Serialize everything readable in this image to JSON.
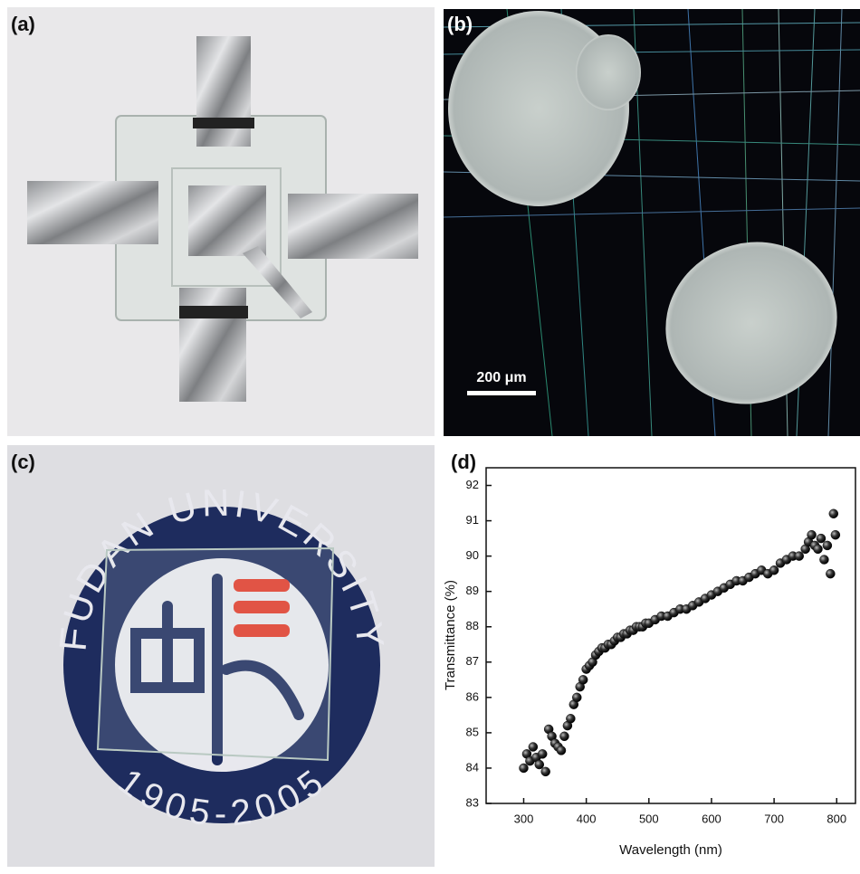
{
  "panels": {
    "a": {
      "label": "(a)"
    },
    "b": {
      "label": "(b)",
      "scale_bar": "200 μm"
    },
    "c": {
      "label": "(c)",
      "logo_top": "FUDAN UNIVERSITY",
      "logo_bottom": "1905-2005"
    }
  },
  "chart_data": {
    "type": "scatter",
    "label": "(d)",
    "x_label": "Wavelength (nm)",
    "y_label": "Transmittance (%)",
    "x": [
      300,
      305,
      310,
      315,
      320,
      325,
      330,
      335,
      340,
      345,
      350,
      355,
      360,
      365,
      370,
      375,
      380,
      385,
      390,
      395,
      400,
      405,
      410,
      415,
      420,
      425,
      430,
      435,
      440,
      445,
      450,
      455,
      460,
      465,
      470,
      475,
      480,
      485,
      490,
      495,
      500,
      510,
      520,
      530,
      540,
      550,
      560,
      570,
      580,
      590,
      600,
      610,
      620,
      630,
      640,
      650,
      660,
      670,
      680,
      690,
      700,
      710,
      720,
      730,
      740,
      750,
      755,
      760,
      765,
      770,
      775,
      780,
      785,
      790,
      795,
      798
    ],
    "values": [
      84.0,
      84.4,
      84.2,
      84.6,
      84.3,
      84.1,
      84.4,
      83.9,
      85.1,
      84.9,
      84.7,
      84.6,
      84.5,
      84.9,
      85.2,
      85.4,
      85.8,
      86.0,
      86.3,
      86.5,
      86.8,
      86.9,
      87.0,
      87.2,
      87.3,
      87.4,
      87.4,
      87.5,
      87.5,
      87.6,
      87.7,
      87.7,
      87.8,
      87.8,
      87.9,
      87.9,
      88.0,
      88.0,
      88.0,
      88.1,
      88.1,
      88.2,
      88.3,
      88.3,
      88.4,
      88.5,
      88.5,
      88.6,
      88.7,
      88.8,
      88.9,
      89.0,
      89.1,
      89.2,
      89.3,
      89.3,
      89.4,
      89.5,
      89.6,
      89.5,
      89.6,
      89.8,
      89.9,
      90.0,
      90.0,
      90.2,
      90.4,
      90.6,
      90.3,
      90.2,
      90.5,
      89.9,
      90.3,
      89.5,
      91.2,
      90.6
    ],
    "color": "#111111",
    "xlim": [
      240,
      830
    ],
    "ylim": [
      83,
      92.5
    ],
    "xticks": [
      300,
      400,
      500,
      600,
      700,
      800
    ],
    "yticks": [
      83,
      84,
      85,
      86,
      87,
      88,
      89,
      90,
      91,
      92
    ]
  }
}
